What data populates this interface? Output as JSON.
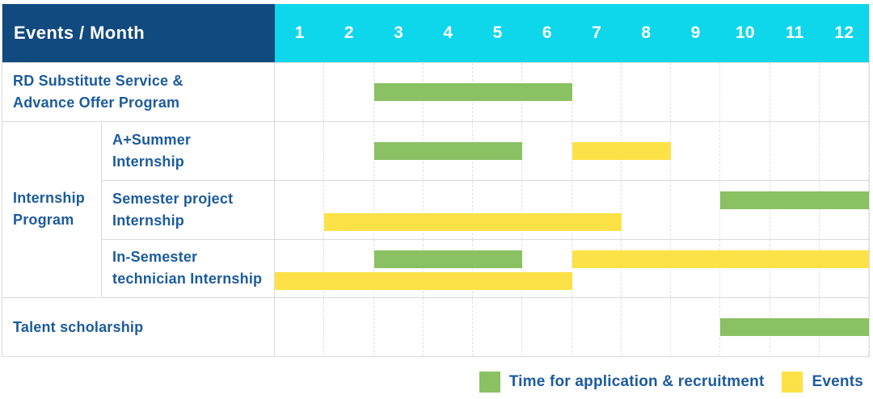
{
  "header": {
    "corner_label": "Events / Month"
  },
  "colors": {
    "header_bg": "#114a7f",
    "month_header_bg": "#0ed7ec",
    "label_text": "#1c5b9d",
    "application_green": "#8ac163",
    "events_yellow": "#fde247",
    "grid_line": "#d9d9d9"
  },
  "chart_data": {
    "type": "table",
    "subtype": "gantt-timeline",
    "title": "",
    "x_axis": {
      "label": "Month",
      "ticks": [
        "1",
        "2",
        "3",
        "4",
        "5",
        "6",
        "7",
        "8",
        "9",
        "10",
        "11",
        "12"
      ],
      "range": [
        1,
        12
      ]
    },
    "grid": true,
    "legend_position": "bottom-right",
    "rows": [
      {
        "type": "simple",
        "label": "RD Substitute Service & Advance Offer Program",
        "label_lines": [
          "RD Substitute Service &",
          "Advance Offer Program"
        ],
        "bars": [
          {
            "series": "application",
            "start_month": 3,
            "end_month": 6,
            "lane": "middle"
          }
        ]
      },
      {
        "type": "group",
        "label": "Internship Program",
        "label_lines": [
          "Internship",
          "Program"
        ],
        "children": [
          {
            "label": "A+Summer Internship",
            "label_lines": [
              "A+Summer",
              "Internship"
            ],
            "bars": [
              {
                "series": "application",
                "start_month": 3,
                "end_month": 5,
                "lane": "middle"
              },
              {
                "series": "events",
                "start_month": 7,
                "end_month": 8,
                "lane": "middle"
              }
            ]
          },
          {
            "label": "Semester project Internship",
            "label_lines": [
              "Semester project",
              "Internship"
            ],
            "bars": [
              {
                "series": "application",
                "start_month": 10,
                "end_month": 12,
                "lane": "upper"
              },
              {
                "series": "events",
                "start_month": 2,
                "end_month": 7,
                "lane": "lower"
              }
            ]
          },
          {
            "label": "In-Semester technician Internship",
            "label_lines": [
              "In-Semester",
              "technician Internship"
            ],
            "bars": [
              {
                "series": "application",
                "start_month": 3,
                "end_month": 5,
                "lane": "upper"
              },
              {
                "series": "events",
                "start_month": 7,
                "end_month": 12,
                "lane": "upper"
              },
              {
                "series": "events",
                "start_month": 1,
                "end_month": 6,
                "lane": "lower"
              }
            ]
          }
        ]
      },
      {
        "type": "simple",
        "label": "Talent scholarship",
        "label_lines": [
          "Talent scholarship"
        ],
        "bars": [
          {
            "series": "application",
            "start_month": 10,
            "end_month": 12,
            "lane": "middle"
          }
        ]
      }
    ],
    "legend": [
      {
        "series": "application",
        "label": "Time for application & recruitment",
        "color": "#8ac163"
      },
      {
        "series": "events",
        "label": "Events",
        "color": "#fde247"
      }
    ]
  }
}
